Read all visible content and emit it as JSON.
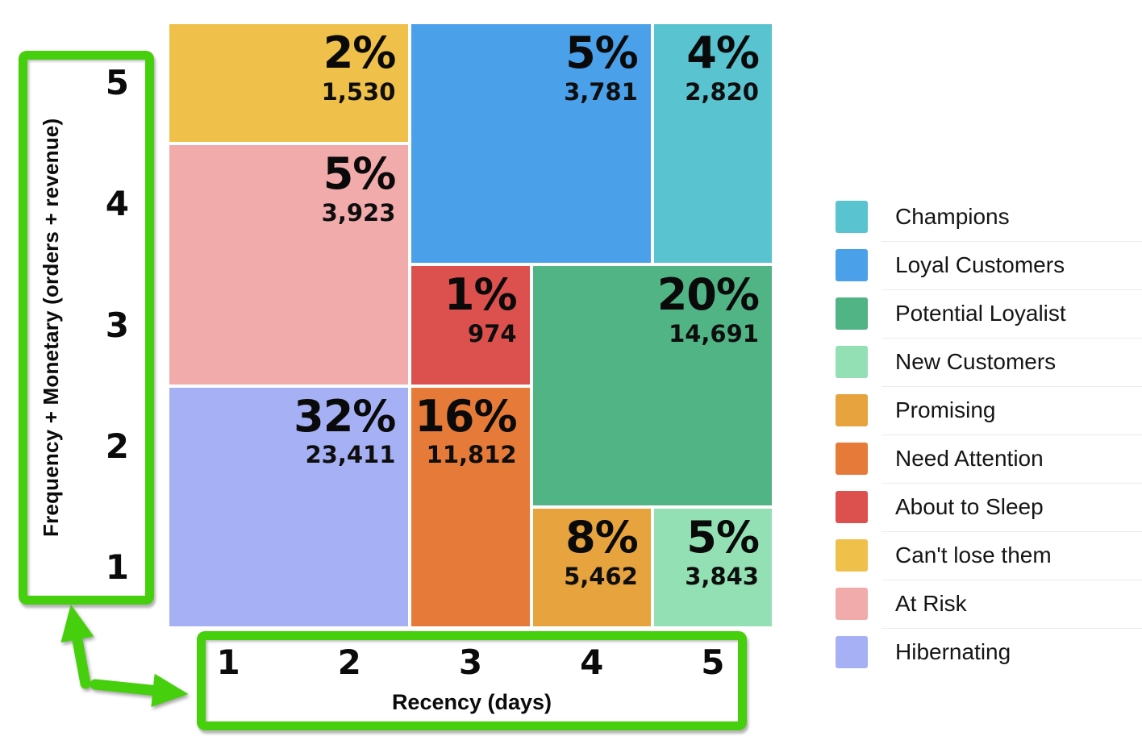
{
  "chart_data": {
    "type": "heatmap",
    "subtype": "rfm-mosaic",
    "title": "",
    "xlabel": "Recency (days)",
    "ylabel": "Frequency + Monetary (orders + revenue)",
    "x_ticks": [
      "1",
      "2",
      "3",
      "4",
      "5"
    ],
    "y_ticks": [
      "5",
      "4",
      "3",
      "2",
      "1"
    ],
    "grid": false,
    "legend_position": "right",
    "annotation_color": "#46CF0C",
    "segments": [
      {
        "name": "Can't lose them",
        "percent": "2%",
        "count": "1,530",
        "color": "#EFC04A",
        "col": 1,
        "colspan": 2,
        "row": 1,
        "rowspan": 1
      },
      {
        "name": "Loyal Customers",
        "percent": "5%",
        "count": "3,781",
        "color": "#4AA1EA",
        "col": 3,
        "colspan": 2,
        "row": 1,
        "rowspan": 2
      },
      {
        "name": "Champions",
        "percent": "4%",
        "count": "2,820",
        "color": "#5AC3D0",
        "col": 5,
        "colspan": 1,
        "row": 1,
        "rowspan": 2
      },
      {
        "name": "At Risk",
        "percent": "5%",
        "count": "3,923",
        "color": "#F2ABAB",
        "col": 1,
        "colspan": 2,
        "row": 2,
        "rowspan": 2
      },
      {
        "name": "About to Sleep",
        "percent": "1%",
        "count": "974",
        "color": "#DC504E",
        "col": 3,
        "colspan": 1,
        "row": 3,
        "rowspan": 1
      },
      {
        "name": "Potential Loyalist",
        "percent": "20%",
        "count": "14,691",
        "color": "#51B485",
        "col": 4,
        "colspan": 2,
        "row": 3,
        "rowspan": 2
      },
      {
        "name": "Hibernating",
        "percent": "32%",
        "count": "23,411",
        "color": "#A6B0F4",
        "col": 1,
        "colspan": 2,
        "row": 4,
        "rowspan": 2
      },
      {
        "name": "Need Attention",
        "percent": "16%",
        "count": "11,812",
        "color": "#E67A38",
        "col": 3,
        "colspan": 1,
        "row": 4,
        "rowspan": 2
      },
      {
        "name": "Promising",
        "percent": "8%",
        "count": "5,462",
        "color": "#E6A33E",
        "col": 4,
        "colspan": 1,
        "row": 5,
        "rowspan": 1
      },
      {
        "name": "New Customers",
        "percent": "5%",
        "count": "3,843",
        "color": "#92E0B3",
        "col": 5,
        "colspan": 1,
        "row": 5,
        "rowspan": 1
      }
    ],
    "legend": [
      {
        "label": "Champions",
        "color": "#5AC3D0"
      },
      {
        "label": "Loyal Customers",
        "color": "#4AA1EA"
      },
      {
        "label": "Potential Loyalist",
        "color": "#51B485"
      },
      {
        "label": "New Customers",
        "color": "#92E0B3"
      },
      {
        "label": "Promising",
        "color": "#E6A33E"
      },
      {
        "label": "Need Attention",
        "color": "#E67A38"
      },
      {
        "label": "About to Sleep",
        "color": "#DC504E"
      },
      {
        "label": "Can't lose them",
        "color": "#EFC04A"
      },
      {
        "label": "At Risk",
        "color": "#F2ABAB"
      },
      {
        "label": "Hibernating",
        "color": "#A6B0F4"
      }
    ]
  }
}
